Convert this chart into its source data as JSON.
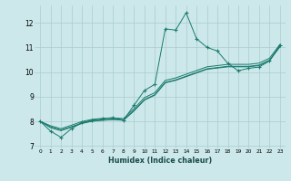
{
  "title": "",
  "xlabel": "Humidex (Indice chaleur)",
  "ylabel": "",
  "bg_color": "#cce8ea",
  "grid_color": "#aacccc",
  "line_color": "#1a7a6e",
  "xlim": [
    -0.5,
    23.5
  ],
  "ylim": [
    6.9,
    12.7
  ],
  "xticks": [
    0,
    1,
    2,
    3,
    4,
    5,
    6,
    7,
    8,
    9,
    10,
    11,
    12,
    13,
    14,
    15,
    16,
    17,
    18,
    19,
    20,
    21,
    22,
    23
  ],
  "yticks": [
    7,
    8,
    9,
    10,
    11,
    12
  ],
  "lines": [
    {
      "x": [
        0,
        1,
        2,
        3,
        4,
        5,
        6,
        7,
        8,
        9,
        10,
        11,
        12,
        13,
        14,
        15,
        16,
        17,
        18,
        19,
        20,
        21,
        22,
        23
      ],
      "y": [
        8.0,
        7.6,
        7.35,
        7.7,
        7.95,
        8.05,
        8.1,
        8.15,
        8.05,
        8.65,
        9.25,
        9.5,
        11.75,
        11.7,
        12.4,
        11.35,
        11.0,
        10.85,
        10.35,
        10.05,
        10.15,
        10.2,
        10.45,
        11.1
      ],
      "marker": true
    },
    {
      "x": [
        0,
        1,
        2,
        3,
        4,
        5,
        6,
        7,
        8,
        9,
        10,
        11,
        12,
        13,
        14,
        15,
        16,
        17,
        18,
        19,
        20,
        21,
        22,
        23
      ],
      "y": [
        8.0,
        7.78,
        7.65,
        7.78,
        7.93,
        8.02,
        8.06,
        8.09,
        8.06,
        8.44,
        8.88,
        9.08,
        9.58,
        9.68,
        9.83,
        9.98,
        10.13,
        10.18,
        10.23,
        10.23,
        10.23,
        10.28,
        10.48,
        11.05
      ],
      "marker": false
    },
    {
      "x": [
        0,
        1,
        2,
        3,
        4,
        5,
        6,
        7,
        8,
        9,
        10,
        11,
        12,
        13,
        14,
        15,
        16,
        17,
        18,
        19,
        20,
        21,
        22,
        23
      ],
      "y": [
        8.0,
        7.82,
        7.7,
        7.84,
        7.99,
        8.08,
        8.12,
        8.14,
        8.11,
        8.51,
        8.96,
        9.16,
        9.66,
        9.76,
        9.91,
        10.06,
        10.21,
        10.26,
        10.31,
        10.31,
        10.31,
        10.36,
        10.56,
        11.12
      ],
      "marker": false
    },
    {
      "x": [
        0,
        1,
        2,
        3,
        4,
        5,
        6,
        7,
        8,
        9,
        10,
        11,
        12,
        13,
        14,
        15,
        16,
        17,
        18,
        19,
        20,
        21,
        22,
        23
      ],
      "y": [
        8.0,
        7.74,
        7.62,
        7.76,
        7.91,
        8.0,
        8.04,
        8.07,
        8.04,
        8.42,
        8.86,
        9.06,
        9.56,
        9.66,
        9.81,
        9.96,
        10.11,
        10.16,
        10.21,
        10.21,
        10.21,
        10.26,
        10.46,
        11.02
      ],
      "marker": false
    }
  ]
}
